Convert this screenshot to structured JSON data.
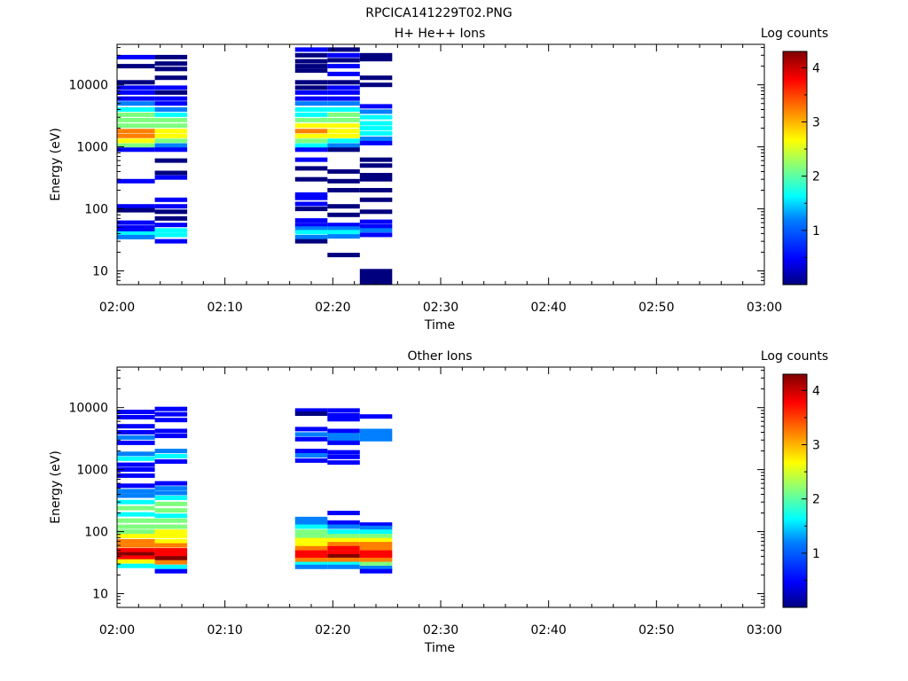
{
  "title": "RPCICA141229T02.PNG",
  "panels": [
    {
      "title": "H+ He++ Ions",
      "ylabel": "Energy (eV)",
      "xlabel": "Time",
      "colorbar_label": "Log counts"
    },
    {
      "title": "Other Ions",
      "ylabel": "Energy (eV)",
      "xlabel": "Time",
      "colorbar_label": "Log counts"
    }
  ],
  "x_ticks": [
    "02:00",
    "02:10",
    "02:20",
    "02:30",
    "02:40",
    "02:50",
    "03:00"
  ],
  "y_ticks": [
    "10",
    "100",
    "1000",
    "10000"
  ],
  "colorbar_ticks": [
    "1",
    "2",
    "3",
    "4"
  ],
  "colormap": [
    "#00007f",
    "#0000ff",
    "#007fff",
    "#00ffff",
    "#7fff7f",
    "#ffff00",
    "#ff7f00",
    "#ff0000",
    "#7f0000"
  ],
  "chart_data": [
    {
      "type": "heatmap",
      "title": "H+ He++ Ions",
      "xlabel": "Time",
      "ylabel": "Energy (eV)",
      "y_scale": "log",
      "x_range": [
        "02:00",
        "03:00"
      ],
      "ylim": [
        6,
        45000
      ],
      "colorbar": {
        "label": "Log counts",
        "range": [
          0,
          4.3
        ]
      },
      "columns": [
        {
          "t0": "02:00",
          "t1": "02:03.5",
          "cells": [
            [
              28000,
              3
            ],
            [
              20000,
              2
            ],
            [
              11000,
              1
            ],
            [
              9000,
              3
            ],
            [
              7500,
              4
            ],
            [
              6000,
              6
            ],
            [
              5000,
              10
            ],
            [
              4000,
              16
            ],
            [
              3300,
              19
            ],
            [
              2700,
              21
            ],
            [
              2200,
              23
            ],
            [
              1800,
              32
            ],
            [
              1500,
              33
            ],
            [
              1250,
              26
            ],
            [
              1050,
              20
            ],
            [
              900,
              3
            ],
            [
              280,
              4
            ],
            [
              110,
              3
            ],
            [
              95,
              2
            ],
            [
              60,
              5
            ],
            [
              50,
              6
            ],
            [
              45,
              8
            ],
            [
              40,
              14
            ],
            [
              35,
              13
            ]
          ]
        },
        {
          "t0": "02:03.5",
          "t1": "02:06.5",
          "cells": [
            [
              28000,
              2
            ],
            [
              22000,
              1
            ],
            [
              18000,
              2
            ],
            [
              13000,
              2
            ],
            [
              9000,
              4
            ],
            [
              7500,
              2
            ],
            [
              6000,
              3
            ],
            [
              5000,
              7
            ],
            [
              4000,
              13
            ],
            [
              3300,
              17
            ],
            [
              2700,
              19
            ],
            [
              2200,
              22
            ],
            [
              1800,
              26
            ],
            [
              1500,
              29
            ],
            [
              1250,
              22
            ],
            [
              1050,
              13
            ],
            [
              900,
              5
            ],
            [
              600,
              2
            ],
            [
              380,
              2
            ],
            [
              320,
              4
            ],
            [
              140,
              3
            ],
            [
              110,
              3
            ],
            [
              90,
              2
            ],
            [
              70,
              2
            ],
            [
              55,
              6
            ],
            [
              45,
              14
            ],
            [
              38,
              15
            ],
            [
              30,
              3
            ]
          ]
        },
        {
          "t0": "02:16.5",
          "t1": "02:19.5",
          "cells": [
            [
              37000,
              3
            ],
            [
              30000,
              2
            ],
            [
              24000,
              2
            ],
            [
              20000,
              1
            ],
            [
              17000,
              1
            ],
            [
              11000,
              2
            ],
            [
              9000,
              2
            ],
            [
              7500,
              3
            ],
            [
              6000,
              5
            ],
            [
              5000,
              11
            ],
            [
              4000,
              15
            ],
            [
              3300,
              18
            ],
            [
              2700,
              21
            ],
            [
              2200,
              25
            ],
            [
              1800,
              30
            ],
            [
              1500,
              26
            ],
            [
              1250,
              22
            ],
            [
              1050,
              17
            ],
            [
              900,
              3
            ],
            [
              620,
              3
            ],
            [
              450,
              2
            ],
            [
              300,
              2
            ],
            [
              170,
              3
            ],
            [
              150,
              3
            ],
            [
              120,
              3
            ],
            [
              100,
              2
            ],
            [
              65,
              5
            ],
            [
              55,
              8
            ],
            [
              48,
              11
            ],
            [
              42,
              16
            ],
            [
              35,
              9
            ],
            [
              30,
              2
            ]
          ]
        },
        {
          "t0": "02:19.5",
          "t1": "02:22.5",
          "cells": [
            [
              37000,
              2
            ],
            [
              30000,
              4
            ],
            [
              25000,
              2
            ],
            [
              20000,
              3
            ],
            [
              15000,
              3
            ],
            [
              11000,
              1
            ],
            [
              9000,
              5
            ],
            [
              7500,
              3
            ],
            [
              6000,
              8
            ],
            [
              5000,
              11
            ],
            [
              4000,
              15
            ],
            [
              3300,
              21
            ],
            [
              2700,
              24
            ],
            [
              2200,
              25
            ],
            [
              1800,
              28
            ],
            [
              1500,
              26
            ],
            [
              1250,
              17
            ],
            [
              1050,
              9
            ],
            [
              900,
              2
            ],
            [
              400,
              2
            ],
            [
              280,
              2
            ],
            [
              200,
              2
            ],
            [
              110,
              2
            ],
            [
              80,
              2
            ],
            [
              55,
              7
            ],
            [
              48,
              10
            ],
            [
              42,
              15
            ],
            [
              36,
              13
            ],
            [
              18,
              2
            ]
          ]
        },
        {
          "t0": "02:22.5",
          "t1": "02:25.5",
          "cells": [
            [
              30000,
              2
            ],
            [
              26000,
              2
            ],
            [
              13000,
              2
            ],
            [
              10000,
              2
            ],
            [
              4500,
              7
            ],
            [
              3700,
              11
            ],
            [
              3000,
              14
            ],
            [
              2400,
              16
            ],
            [
              2000,
              18
            ],
            [
              1650,
              16
            ],
            [
              1350,
              12
            ],
            [
              1150,
              6
            ],
            [
              620,
              2
            ],
            [
              500,
              2
            ],
            [
              350,
              2
            ],
            [
              300,
              2
            ],
            [
              200,
              2
            ],
            [
              140,
              2
            ],
            [
              90,
              2
            ],
            [
              62,
              3
            ],
            [
              52,
              8
            ],
            [
              45,
              12
            ],
            [
              38,
              7
            ],
            [
              8,
              1
            ]
          ]
        }
      ]
    },
    {
      "type": "heatmap",
      "title": "Other Ions",
      "xlabel": "Time",
      "ylabel": "Energy (eV)",
      "y_scale": "log",
      "x_range": [
        "02:00",
        "03:00"
      ],
      "ylim": [
        6,
        45000
      ],
      "colorbar": {
        "label": "Log counts",
        "range": [
          0,
          4.3
        ]
      },
      "columns": [
        {
          "t0": "02:00",
          "t1": "02:03.5",
          "cells": [
            [
              8500,
              3
            ],
            [
              7000,
              6
            ],
            [
              5000,
              3
            ],
            [
              4000,
              8
            ],
            [
              3300,
              11
            ],
            [
              2700,
              6
            ],
            [
              1800,
              10
            ],
            [
              1500,
              14
            ],
            [
              1200,
              3
            ],
            [
              1000,
              3
            ],
            [
              800,
              3
            ],
            [
              550,
              6
            ],
            [
              450,
              10
            ],
            [
              380,
              12
            ],
            [
              300,
              16
            ],
            [
              240,
              20
            ],
            [
              190,
              17
            ],
            [
              150,
              20
            ],
            [
              120,
              23
            ],
            [
              100,
              24
            ],
            [
              85,
              27
            ],
            [
              70,
              30
            ],
            [
              60,
              31
            ],
            [
              50,
              36
            ],
            [
              43,
              42
            ],
            [
              38,
              40
            ],
            [
              33,
              28
            ],
            [
              28,
              16
            ]
          ]
        },
        {
          "t0": "02:03.5",
          "t1": "02:06.5",
          "cells": [
            [
              9500,
              6
            ],
            [
              7800,
              4
            ],
            [
              6300,
              3
            ],
            [
              4200,
              6
            ],
            [
              3500,
              8
            ],
            [
              2000,
              12
            ],
            [
              1650,
              15
            ],
            [
              1350,
              8
            ],
            [
              600,
              3
            ],
            [
              500,
              9
            ],
            [
              420,
              11
            ],
            [
              350,
              16
            ],
            [
              280,
              19
            ],
            [
              220,
              19
            ],
            [
              180,
              14
            ],
            [
              150,
              20
            ],
            [
              120,
              22
            ],
            [
              100,
              25
            ],
            [
              85,
              27
            ],
            [
              70,
              29
            ],
            [
              60,
              33
            ],
            [
              50,
              38
            ],
            [
              43,
              40
            ],
            [
              37,
              41
            ],
            [
              32,
              31
            ],
            [
              27,
              18
            ],
            [
              23,
              3
            ]
          ]
        },
        {
          "t0": "02:16.5",
          "t1": "02:19.5",
          "cells": [
            [
              9000,
              3
            ],
            [
              8000,
              2
            ],
            [
              4500,
              5
            ],
            [
              3700,
              9
            ],
            [
              3100,
              7
            ],
            [
              2000,
              6
            ],
            [
              1700,
              10
            ],
            [
              1400,
              7
            ],
            [
              160,
              9
            ],
            [
              140,
              12
            ],
            [
              120,
              14
            ],
            [
              100,
              19
            ],
            [
              85,
              22
            ],
            [
              73,
              25
            ],
            [
              63,
              28
            ],
            [
              54,
              32
            ],
            [
              46,
              38
            ],
            [
              40,
              40
            ],
            [
              35,
              34
            ],
            [
              30,
              16
            ],
            [
              27,
              10
            ]
          ]
        },
        {
          "t0": "02:19.5",
          "t1": "02:22.5",
          "cells": [
            [
              9000,
              6
            ],
            [
              7500,
              8
            ],
            [
              6500,
              5
            ],
            [
              4200,
              8
            ],
            [
              3600,
              10
            ],
            [
              3100,
              10
            ],
            [
              2700,
              4
            ],
            [
              1900,
              6
            ],
            [
              1600,
              4
            ],
            [
              1300,
              3
            ],
            [
              200,
              3
            ],
            [
              140,
              6
            ],
            [
              120,
              9
            ],
            [
              100,
              16
            ],
            [
              85,
              23
            ],
            [
              73,
              26
            ],
            [
              63,
              31
            ],
            [
              54,
              35
            ],
            [
              46,
              40
            ],
            [
              40,
              42
            ],
            [
              35,
              30
            ],
            [
              30,
              17
            ],
            [
              27,
              12
            ]
          ]
        },
        {
          "t0": "02:22.5",
          "t1": "02:25.5",
          "cells": [
            [
              7200,
              5
            ],
            [
              4200,
              9
            ],
            [
              3600,
              12
            ],
            [
              3100,
              11
            ],
            [
              130,
              6
            ],
            [
              115,
              11
            ],
            [
              100,
              16
            ],
            [
              85,
              22
            ],
            [
              73,
              25
            ],
            [
              63,
              30
            ],
            [
              54,
              33
            ],
            [
              46,
              38
            ],
            [
              40,
              40
            ],
            [
              35,
              34
            ],
            [
              30,
              22
            ],
            [
              26,
              10
            ],
            [
              23,
              3
            ]
          ]
        }
      ]
    }
  ]
}
